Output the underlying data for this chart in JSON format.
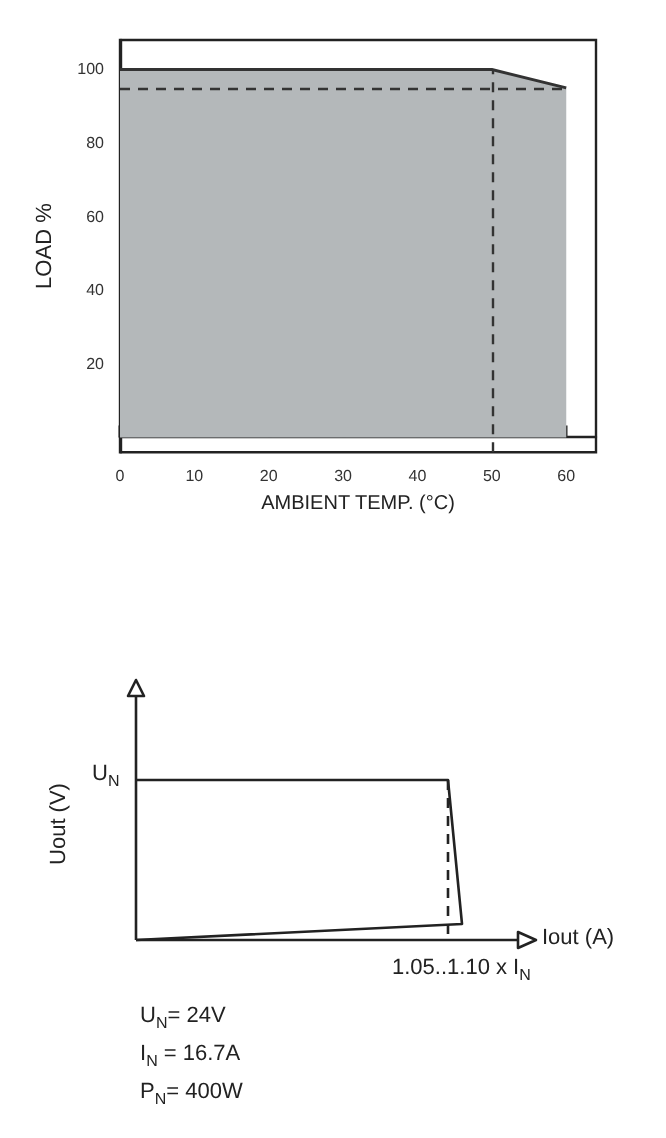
{
  "chart_data": [
    {
      "type": "area",
      "xlabel": "AMBIENT TEMP. (°C)",
      "ylabel": "LOAD %",
      "x": [
        0,
        50,
        60
      ],
      "values": [
        100,
        100,
        95
      ],
      "color": "#b4b8ba",
      "xlim": [
        0,
        64
      ],
      "xticks": [
        0,
        10,
        20,
        30,
        40,
        50,
        60
      ],
      "ylim": [
        -4,
        108
      ],
      "yticks": [
        20,
        40,
        60,
        80,
        100
      ],
      "ref_lines": [
        {
          "axis": "y",
          "value": 95,
          "line_style": "dashed"
        },
        {
          "axis": "x",
          "value": 50,
          "line_style": "dashed"
        }
      ]
    },
    {
      "type": "other",
      "xlabel": "Iout (A)",
      "ylabel": "Uout (V)",
      "annotations": [
        "U$_{N}$",
        "1.05..1.10 x I$_{N}$",
        "U$_{N}$= 24V",
        "I$_{N}$ = 16.7A",
        "P$_{N}$= 400W"
      ]
    }
  ]
}
